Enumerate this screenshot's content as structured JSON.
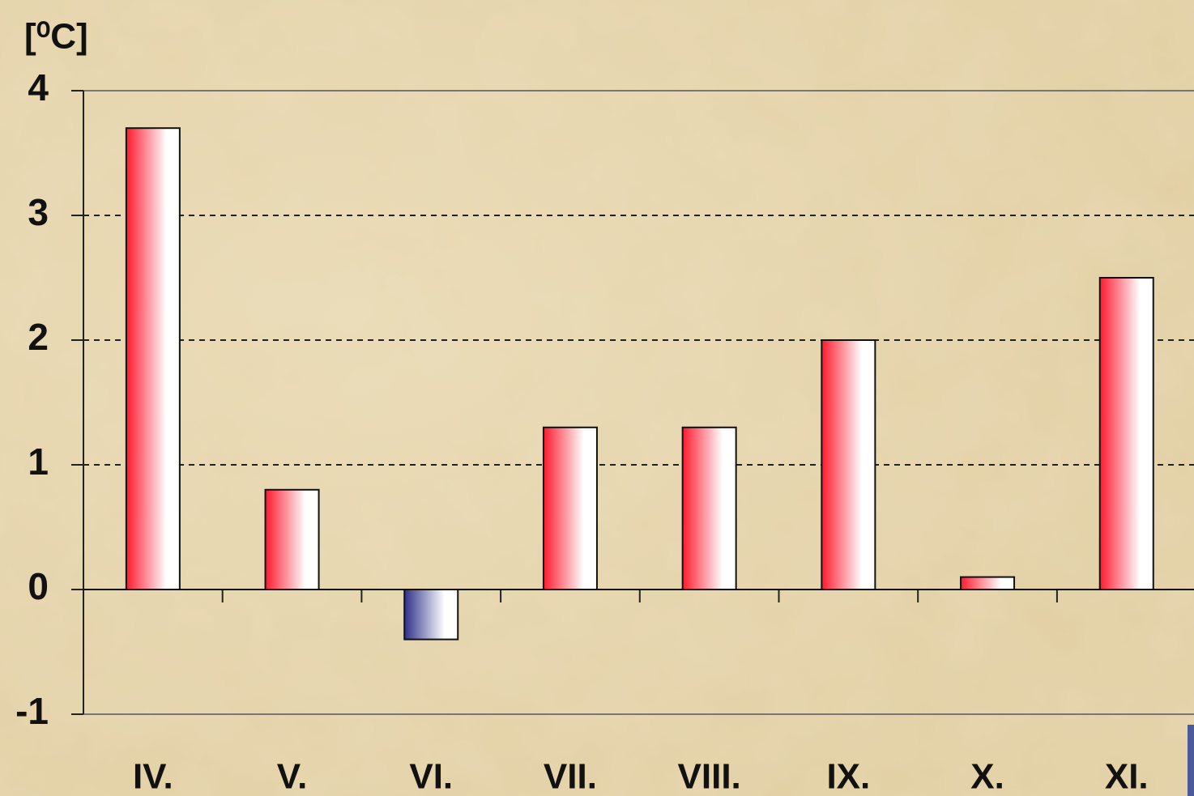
{
  "chart_data": {
    "type": "bar",
    "y_label": "[⁰C]",
    "categories": [
      "IV.",
      "V.",
      "VI.",
      "VII.",
      "VIII.",
      "IX.",
      "X.",
      "XI."
    ],
    "values": [
      3.7,
      0.8,
      -0.4,
      1.3,
      1.3,
      2.0,
      0.1,
      2.5
    ],
    "color": "#ff1a2e",
    "negative_color": "#2e3189",
    "ylim": [
      -1,
      4
    ],
    "yticks": [
      -1,
      0,
      1,
      2,
      3,
      4
    ],
    "grid": true
  }
}
